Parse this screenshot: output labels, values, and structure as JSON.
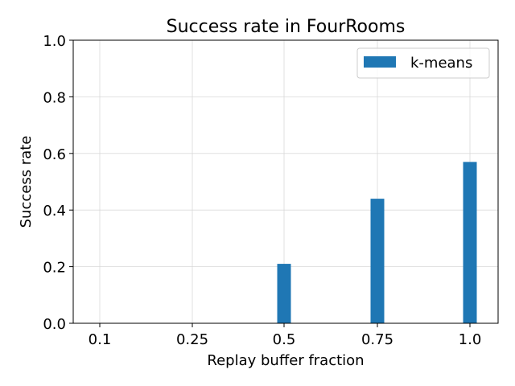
{
  "chart_data": {
    "type": "bar",
    "title": "Success rate in FourRooms",
    "xlabel": "Replay buffer fraction",
    "ylabel": "Success rate",
    "categories": [
      "0.1",
      "0.25",
      "0.5",
      "0.75",
      "1.0"
    ],
    "series": [
      {
        "name": "k-means",
        "values": [
          0.0,
          0.0,
          0.21,
          0.44,
          0.57
        ],
        "color": "#1f77b4"
      }
    ],
    "ylim": [
      0,
      1.0
    ],
    "yticks": [
      "0.0",
      "0.2",
      "0.4",
      "0.6",
      "0.8",
      "1.0"
    ],
    "grid": true,
    "legend": "top-right"
  }
}
